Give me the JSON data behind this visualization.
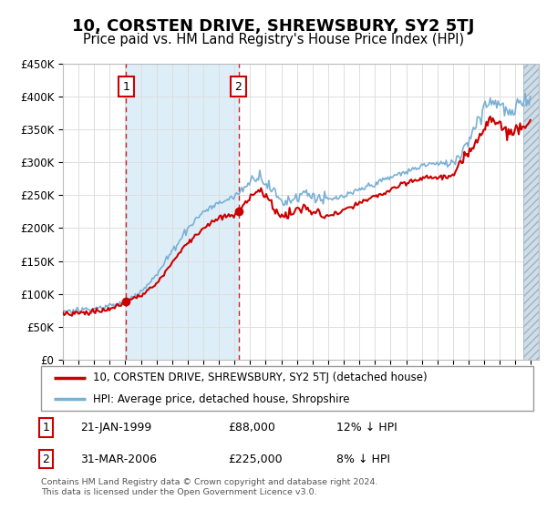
{
  "title": "10, CORSTEN DRIVE, SHREWSBURY, SY2 5TJ",
  "subtitle": "Price paid vs. HM Land Registry's House Price Index (HPI)",
  "footer_line1": "Contains HM Land Registry data © Crown copyright and database right 2024.",
  "footer_line2": "This data is licensed under the Open Government Licence v3.0.",
  "legend_label_red": "10, CORSTEN DRIVE, SHREWSBURY, SY2 5TJ (detached house)",
  "legend_label_blue": "HPI: Average price, detached house, Shropshire",
  "sale1_date": "21-JAN-1999",
  "sale1_price": "£88,000",
  "sale1_hpi": "12% ↓ HPI",
  "sale2_date": "31-MAR-2006",
  "sale2_price": "£225,000",
  "sale2_hpi": "8% ↓ HPI",
  "sale1_year": 1999.05,
  "sale1_value": 88000,
  "sale2_year": 2006.25,
  "sale2_value": 225000,
  "xmin": 1995,
  "xmax": 2025,
  "ylim": [
    0,
    450000
  ],
  "yticks": [
    0,
    50000,
    100000,
    150000,
    200000,
    250000,
    300000,
    350000,
    400000,
    450000
  ],
  "red_color": "#cc0000",
  "blue_color": "#7ab0d4",
  "shade_color": "#ddeef8",
  "hatch_bg": "#c8dce8",
  "grid_color": "#dddddd",
  "title_fontsize": 13,
  "subtitle_fontsize": 10.5
}
